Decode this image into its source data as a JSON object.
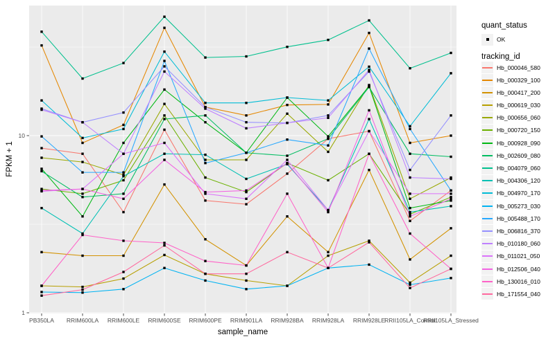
{
  "chart_data": {
    "type": "line",
    "title": "",
    "xlabel": "sample_name",
    "ylabel": "FPKM + 1",
    "y_scale": "log10",
    "y_tick_labels": [
      "1",
      "10"
    ],
    "y_ticks": [
      1,
      10
    ],
    "y_minor_breaks": [
      3.162,
      31.623
    ],
    "ylim": [
      1,
      54
    ],
    "grid": true,
    "legend_position": "right",
    "categories": [
      "PB350LA",
      "RRIM600LA",
      "RRIM600LE",
      "RRIM600SE",
      "RRIM600PE",
      "RRIM901LA",
      "RRIM928BA",
      "RRIM928LA",
      "RRIM928LE",
      "RRII105LA_Control",
      "RRII105LA_Stressed"
    ],
    "series": [
      {
        "name": "Hb_000046_580",
        "color": "#F8766D",
        "values": [
          8.5,
          7.9,
          3.7,
          10.8,
          4.3,
          4.1,
          6.1,
          9.6,
          10.6,
          3.3,
          4.9
        ]
      },
      {
        "name": "Hb_000329_100",
        "color": "#E58700",
        "values": [
          32.3,
          9.1,
          11.5,
          40.6,
          14.5,
          13.0,
          14.9,
          15.0,
          38.0,
          9.1,
          10.0
        ]
      },
      {
        "name": "Hb_000417_200",
        "color": "#D39200",
        "values": [
          2.2,
          2.1,
          2.1,
          5.3,
          2.6,
          1.85,
          3.5,
          2.2,
          6.4,
          2.0,
          3.0
        ]
      },
      {
        "name": "Hb_000619_030",
        "color": "#B79F00",
        "values": [
          1.42,
          1.4,
          1.56,
          2.12,
          1.66,
          1.52,
          1.42,
          2.1,
          2.55,
          1.48,
          2.1
        ]
      },
      {
        "name": "Hb_000656_060",
        "color": "#99A800",
        "values": [
          7.5,
          7.1,
          6.0,
          15.1,
          7.3,
          7.3,
          13.3,
          8.1,
          19.3,
          4.4,
          5.8
        ]
      },
      {
        "name": "Hb_000720_150",
        "color": "#6BB100",
        "values": [
          5.0,
          4.7,
          5.6,
          13.0,
          5.8,
          4.8,
          7.0,
          5.6,
          7.9,
          3.6,
          4.5
        ]
      },
      {
        "name": "Hb_000928_090",
        "color": "#00B813",
        "values": [
          6.5,
          3.5,
          9.1,
          18.2,
          11.9,
          8.0,
          16.4,
          9.9,
          19.0,
          3.9,
          4.3
        ]
      },
      {
        "name": "Hb_002609_080",
        "color": "#00BD61",
        "values": [
          6.3,
          4.5,
          4.7,
          12.4,
          13.0,
          8.0,
          7.7,
          9.6,
          18.8,
          7.9,
          7.6
        ]
      },
      {
        "name": "Hb_004079_060",
        "color": "#00C08D",
        "values": [
          38.6,
          21.0,
          25.7,
          46.9,
          27.6,
          28.0,
          31.7,
          34.7,
          44.7,
          24.0,
          29.3
        ]
      },
      {
        "name": "Hb_004306_120",
        "color": "#00C0B4",
        "values": [
          3.9,
          2.8,
          5.9,
          7.9,
          7.8,
          5.7,
          6.9,
          3.8,
          12.4,
          3.7,
          4.0
        ]
      },
      {
        "name": "Hb_004970_170",
        "color": "#00BCD6",
        "values": [
          15.8,
          9.7,
          10.9,
          29.8,
          15.3,
          15.3,
          16.4,
          15.8,
          24.5,
          11.3,
          22.5
        ]
      },
      {
        "name": "Hb_005273_030",
        "color": "#00B3F2",
        "values": [
          1.31,
          1.3,
          1.36,
          1.79,
          1.52,
          1.36,
          1.42,
          1.79,
          1.87,
          1.44,
          1.57
        ]
      },
      {
        "name": "Hb_005488_170",
        "color": "#27A8FF",
        "values": [
          9.9,
          6.2,
          6.2,
          26.4,
          7.0,
          8.0,
          9.5,
          8.8,
          31.0,
          10.9,
          4.9
        ]
      },
      {
        "name": "Hb_006816_370",
        "color": "#9590FF",
        "values": [
          14.2,
          11.9,
          13.5,
          24.6,
          14.5,
          11.9,
          11.8,
          13.0,
          23.0,
          6.4,
          13.0
        ]
      },
      {
        "name": "Hb_010180_060",
        "color": "#BF80FF",
        "values": [
          14.0,
          11.9,
          7.9,
          23.0,
          14.2,
          11.0,
          11.8,
          12.6,
          23.5,
          5.8,
          5.7
        ]
      },
      {
        "name": "Hb_011021_050",
        "color": "#DB72FB",
        "values": [
          4.85,
          5.0,
          7.9,
          9.1,
          4.7,
          4.4,
          7.3,
          3.8,
          10.6,
          4.7,
          4.7
        ]
      },
      {
        "name": "Hb_012506_040",
        "color": "#F263E2",
        "values": [
          4.9,
          5.0,
          4.4,
          7.3,
          4.8,
          4.9,
          7.0,
          3.7,
          13.9,
          3.5,
          4.4
        ]
      },
      {
        "name": "Hb_130016_010",
        "color": "#FF61C7",
        "values": [
          1.42,
          2.75,
          2.55,
          2.48,
          1.96,
          1.85,
          4.7,
          1.79,
          7.9,
          2.8,
          1.77
        ]
      },
      {
        "name": "Hb_171554_040",
        "color": "#FF689E",
        "values": [
          1.25,
          1.35,
          1.7,
          2.4,
          1.66,
          1.66,
          2.2,
          1.79,
          2.5,
          1.38,
          1.77
        ]
      }
    ],
    "legend": {
      "quant_title": "quant_status",
      "quant_items": [
        {
          "label": "OK",
          "marker": "black-square"
        }
      ],
      "series_title": "tracking_id"
    },
    "colors": {
      "panel_bg": "#EBEBEB",
      "grid": "#FFFFFF",
      "legend_key_bg": "#F2F2F2",
      "axis_text": "#4D4D4D",
      "tick": "#333333",
      "marker": "#000000"
    }
  }
}
